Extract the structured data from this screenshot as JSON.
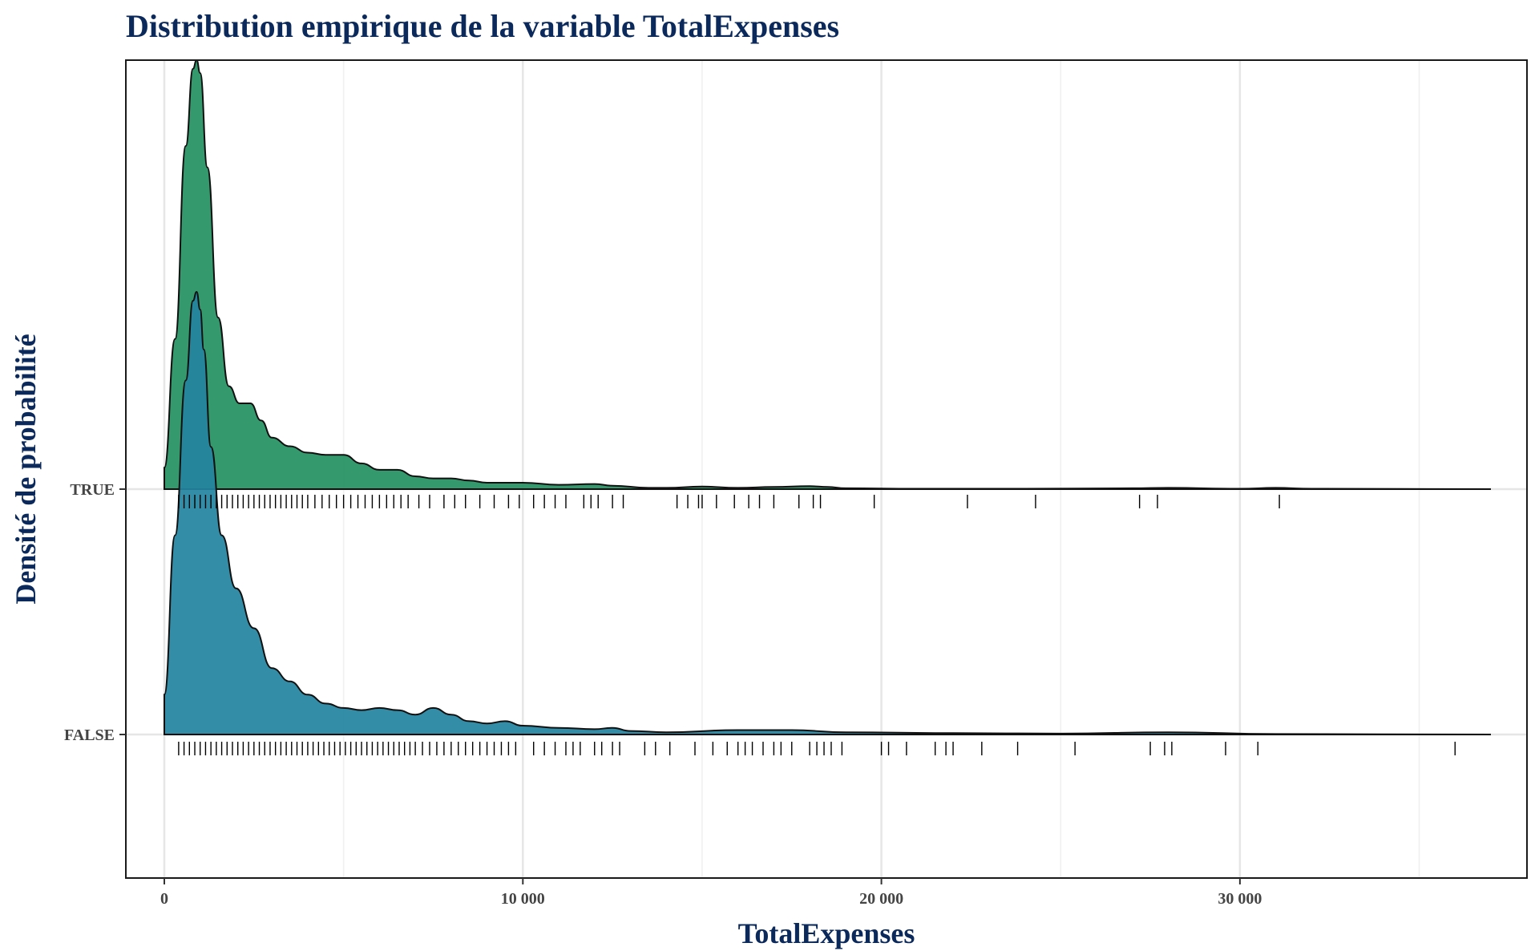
{
  "chart_data": {
    "type": "ridgeline",
    "title": "Distribution empirique de la variable TotalExpenses",
    "xlabel": "TotalExpenses",
    "ylabel": "Densité de probabilité",
    "xlim": [
      -1000,
      38000
    ],
    "x_ticks": [
      0,
      10000,
      20000,
      30000
    ],
    "x_tick_labels": [
      "0",
      "10 000",
      "20 000",
      "30 000"
    ],
    "grid": true,
    "legend": "none",
    "categories": [
      "TRUE",
      "FALSE"
    ],
    "series": [
      {
        "name": "TRUE",
        "color": "#23905f",
        "opacity": 0.92,
        "density": {
          "x": [
            0,
            300,
            600,
            800,
            900,
            1000,
            1200,
            1500,
            1800,
            2100,
            2400,
            2700,
            3000,
            3500,
            4000,
            4500,
            5000,
            5500,
            6000,
            6500,
            7000,
            7500,
            8000,
            8500,
            9000,
            10000,
            11000,
            12000,
            12500,
            13500,
            14000,
            15000,
            16000,
            17000,
            18000,
            18500,
            19000,
            21000,
            24000,
            27000,
            28000,
            30000,
            31000,
            32000,
            37000
          ],
          "y": [
            0.05,
            0.35,
            0.8,
            0.98,
            1.0,
            0.97,
            0.75,
            0.4,
            0.24,
            0.2,
            0.2,
            0.16,
            0.12,
            0.1,
            0.085,
            0.08,
            0.08,
            0.06,
            0.045,
            0.045,
            0.03,
            0.025,
            0.025,
            0.02,
            0.015,
            0.015,
            0.01,
            0.012,
            0.008,
            0.003,
            0.003,
            0.006,
            0.003,
            0.005,
            0.007,
            0.005,
            0.002,
            0.001,
            0.001,
            0.002,
            0.003,
            0.001,
            0.003,
            0.001,
            0.0
          ]
        },
        "rug_x": [
          400,
          550,
          700,
          850,
          1000,
          1150,
          1300,
          1450,
          1600,
          1750,
          1900,
          2050,
          2200,
          2350,
          2500,
          2650,
          2800,
          2950,
          3100,
          3250,
          3400,
          3550,
          3700,
          3850,
          4000,
          4200,
          4400,
          4600,
          4800,
          5000,
          5200,
          5400,
          5600,
          5800,
          6000,
          6200,
          6400,
          6600,
          6800,
          7100,
          7400,
          7800,
          8100,
          8400,
          8800,
          9200,
          9600,
          9900,
          10300,
          10600,
          10900,
          11200,
          11700,
          11900,
          12100,
          12500,
          12800,
          14300,
          14600,
          14900,
          15000,
          15400,
          15900,
          16300,
          16600,
          17000,
          17700,
          18100,
          18300,
          19800,
          22400,
          24300,
          27200,
          27700,
          31100
        ]
      },
      {
        "name": "FALSE",
        "color": "#23839f",
        "opacity": 0.92,
        "density": {
          "x": [
            0,
            300,
            600,
            800,
            900,
            1000,
            1100,
            1300,
            1600,
            2000,
            2500,
            3000,
            3500,
            4000,
            4500,
            5000,
            5500,
            6000,
            6500,
            7000,
            7500,
            8000,
            8500,
            9000,
            9500,
            10000,
            11000,
            12000,
            12500,
            13000,
            14000,
            16000,
            17500,
            19000,
            22000,
            25000,
            28000,
            31000,
            37000
          ],
          "y": [
            0.09,
            0.45,
            0.8,
            0.98,
            1.0,
            0.96,
            0.87,
            0.65,
            0.45,
            0.33,
            0.24,
            0.15,
            0.12,
            0.09,
            0.07,
            0.06,
            0.055,
            0.06,
            0.055,
            0.045,
            0.06,
            0.045,
            0.03,
            0.025,
            0.03,
            0.02,
            0.015,
            0.012,
            0.015,
            0.008,
            0.005,
            0.01,
            0.01,
            0.005,
            0.003,
            0.002,
            0.005,
            0.001,
            0.0
          ]
        },
        "rug_x": [
          400,
          550,
          700,
          850,
          1000,
          1150,
          1300,
          1450,
          1600,
          1750,
          1900,
          2050,
          2200,
          2350,
          2500,
          2650,
          2800,
          2950,
          3100,
          3250,
          3400,
          3550,
          3700,
          3850,
          4000,
          4150,
          4300,
          4450,
          4600,
          4750,
          4900,
          5050,
          5200,
          5350,
          5500,
          5650,
          5800,
          5950,
          6100,
          6250,
          6400,
          6550,
          6700,
          6850,
          7000,
          7200,
          7400,
          7600,
          7800,
          8000,
          8200,
          8400,
          8600,
          8800,
          9000,
          9200,
          9400,
          9600,
          9800,
          10300,
          10600,
          10900,
          11200,
          11400,
          11600,
          12000,
          12200,
          12500,
          12700,
          13400,
          13700,
          14100,
          14800,
          15300,
          15700,
          16000,
          16200,
          16400,
          16700,
          17000,
          17200,
          17500,
          18000,
          18200,
          18400,
          18600,
          18900,
          20000,
          20200,
          20700,
          21500,
          21800,
          22000,
          22800,
          23800,
          25400,
          27500,
          27900,
          28100,
          29600,
          30500,
          36000
        ]
      }
    ]
  }
}
